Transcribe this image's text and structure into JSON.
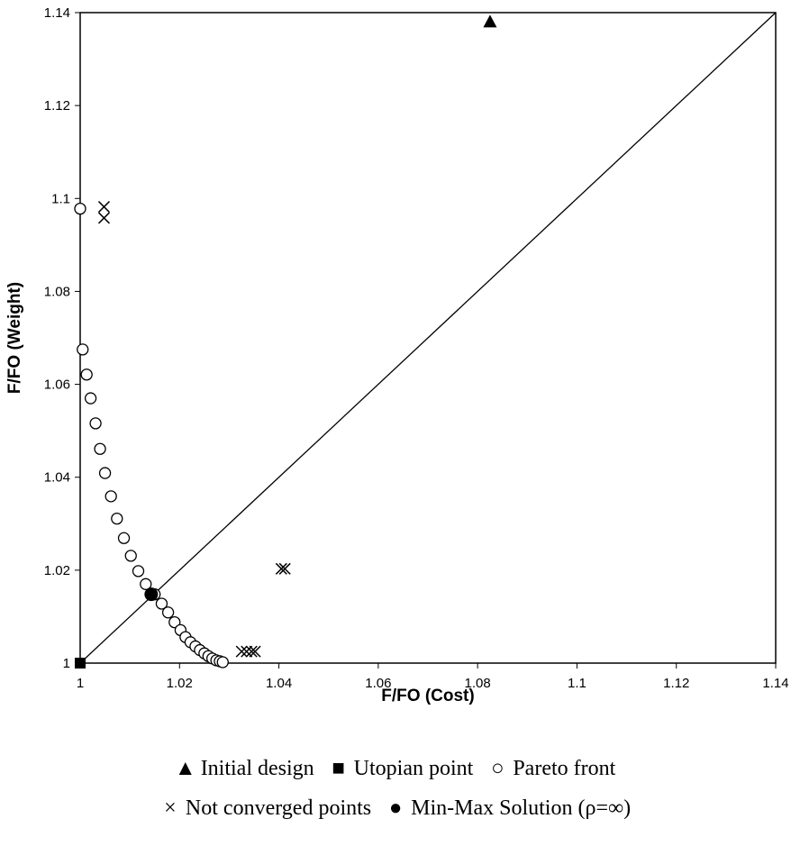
{
  "chart_data": {
    "type": "scatter",
    "title": "",
    "xlabel": "F/FO (Cost)",
    "ylabel": "F/FO (Weight)",
    "xlim": [
      1,
      1.14
    ],
    "ylim": [
      1,
      1.14
    ],
    "x_ticks": [
      "1",
      "1.02",
      "1.04",
      "1.06",
      "1.08",
      "1.1",
      "1.12",
      "1.14"
    ],
    "y_ticks": [
      "1",
      "1.02",
      "1.04",
      "1.06",
      "1.08",
      "1.1",
      "1.12",
      "1.14"
    ],
    "x_tick_values": [
      1,
      1.02,
      1.04,
      1.06,
      1.08,
      1.1,
      1.12,
      1.14
    ],
    "y_tick_values": [
      1,
      1.02,
      1.04,
      1.06,
      1.08,
      1.1,
      1.12,
      1.14
    ],
    "grid": false,
    "legend_position": "bottom",
    "reference_line": {
      "from": [
        1,
        1
      ],
      "to": [
        1.14,
        1.14
      ]
    },
    "series": [
      {
        "name": "Initial design",
        "marker": "triangle",
        "points": [
          [
            1.0825,
            1.138
          ]
        ]
      },
      {
        "name": "Utopian point",
        "marker": "square",
        "points": [
          [
            1.0,
            1.0
          ]
        ]
      },
      {
        "name": "Pareto front",
        "marker": "open-circle",
        "points": [
          [
            1.0,
            1.0978
          ],
          [
            1.0005,
            1.0675
          ],
          [
            1.0013,
            1.0621
          ],
          [
            1.0021,
            1.057
          ],
          [
            1.0031,
            1.0516
          ],
          [
            1.004,
            1.0461
          ],
          [
            1.005,
            1.0409
          ],
          [
            1.0062,
            1.0359
          ],
          [
            1.0074,
            1.0311
          ],
          [
            1.0088,
            1.0269
          ],
          [
            1.0102,
            1.0231
          ],
          [
            1.0117,
            1.0198
          ],
          [
            1.0132,
            1.017
          ],
          [
            1.015,
            1.0148
          ],
          [
            1.0164,
            1.0128
          ],
          [
            1.0177,
            1.0109
          ],
          [
            1.019,
            1.0088
          ],
          [
            1.0202,
            1.0071
          ],
          [
            1.0212,
            1.0056
          ],
          [
            1.0222,
            1.0045
          ],
          [
            1.0232,
            1.0036
          ],
          [
            1.0241,
            1.0028
          ],
          [
            1.025,
            1.0021
          ],
          [
            1.0258,
            1.0015
          ],
          [
            1.0266,
            1.001
          ],
          [
            1.0274,
            1.0006
          ],
          [
            1.0281,
            1.0004
          ],
          [
            1.0287,
            1.0002
          ]
        ]
      },
      {
        "name": "Not converged points",
        "marker": "x",
        "points": [
          [
            1.0048,
            1.0982
          ],
          [
            1.0048,
            1.0958
          ],
          [
            1.0405,
            1.0203
          ],
          [
            1.0412,
            1.0203
          ],
          [
            1.0325,
            1.0025
          ],
          [
            1.0335,
            1.0025
          ],
          [
            1.0345,
            1.0025
          ],
          [
            1.0352,
            1.0025
          ]
        ]
      },
      {
        "name": "Min-Max Solution (ρ=∞)",
        "marker": "filled-circle",
        "points": [
          [
            1.0143,
            1.0148
          ]
        ]
      }
    ]
  },
  "legend": {
    "row1": [
      {
        "symbol": "▲",
        "label": "Initial design"
      },
      {
        "symbol": "■",
        "label": "Utopian point"
      },
      {
        "symbol": "○",
        "label": "Pareto front"
      }
    ],
    "row2": [
      {
        "symbol": "×",
        "label": "Not converged points"
      },
      {
        "symbol": "●",
        "label": "Min-Max Solution (ρ=∞)"
      }
    ]
  }
}
